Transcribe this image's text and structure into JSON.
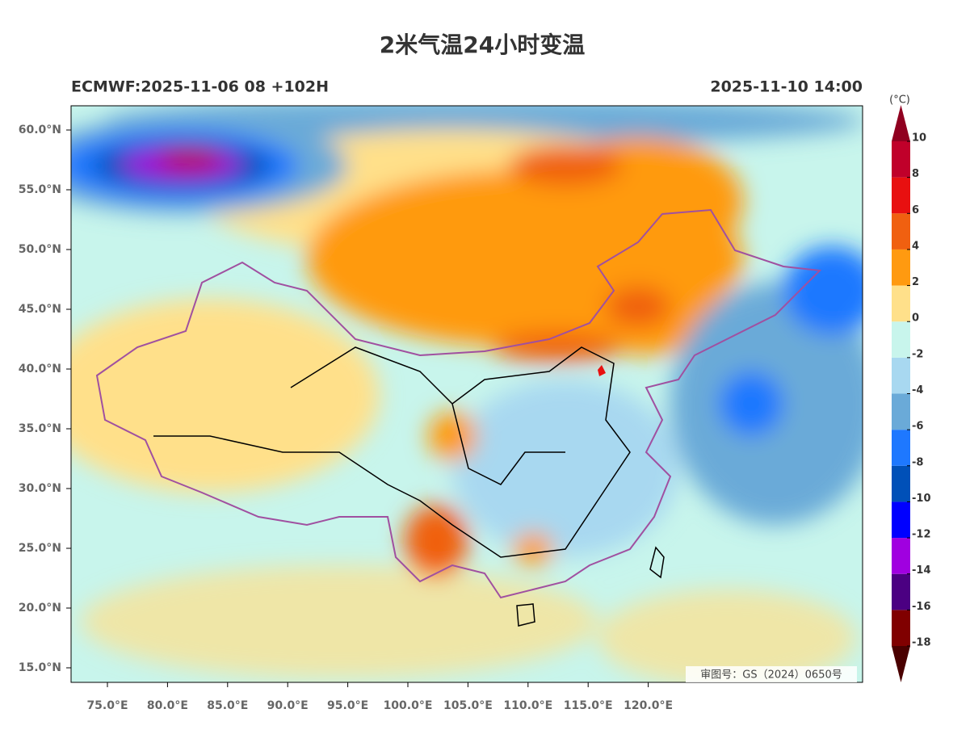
{
  "title": "2米气温24小时变温",
  "subtitle_left": "ECMWF:2025-11-06 08 +102H",
  "subtitle_right": "2025-11-10 14:00",
  "map": {
    "lat_labels": [
      "60.0°N",
      "55.0°N",
      "50.0°N",
      "45.0°N",
      "40.0°N",
      "35.0°N",
      "30.0°N",
      "25.0°N",
      "20.0°N",
      "15.0°N"
    ],
    "lon_labels": [
      "75.0°E",
      "80.0°E",
      "85.0°E",
      "90.0°E",
      "95.0°E",
      "100.0°E",
      "105.0°E",
      "110.0°E",
      "115.0°E",
      "120.0°E"
    ],
    "approval_number": "审图号：GS（2024）0650号"
  },
  "colorbar": {
    "unit": "(°C)",
    "levels": [
      -18,
      -16,
      -14,
      -12,
      -10,
      -8,
      -6,
      -4,
      -2,
      0,
      2,
      4,
      6,
      8,
      10
    ],
    "colors": [
      "#4a0000",
      "#800000",
      "#4b0082",
      "#a000e0",
      "#0000ff",
      "#0050b8",
      "#1e78ff",
      "#6aaad8",
      "#a8d8f0",
      "#c8f5ec",
      "#ffe08a",
      "#ff9a10",
      "#f06010",
      "#e81010",
      "#c0002a",
      "#900020"
    ]
  }
}
